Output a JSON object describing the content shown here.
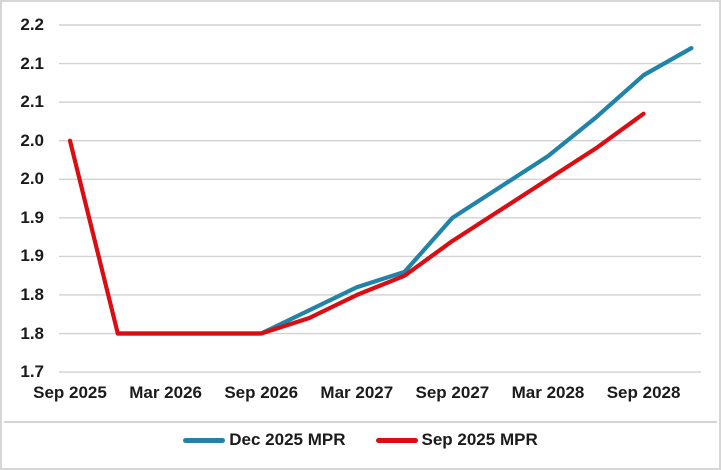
{
  "chart_data": {
    "type": "line",
    "title": "",
    "x": [
      "Sep 2025",
      "Dec 2025",
      "Mar 2026",
      "Jun 2026",
      "Sep 2026",
      "Dec 2026",
      "Mar 2027",
      "Jun 2027",
      "Sep 2027",
      "Dec 2027",
      "Mar 2028",
      "Jun 2028",
      "Sep 2028",
      "Dec 2028"
    ],
    "x_axis_tick_labels": [
      "Sep 2025",
      "Mar 2026",
      "Sep 2026",
      "Mar 2027",
      "Sep 2027",
      "Mar 2028",
      "Sep 2028"
    ],
    "x_axis_tick_indices": [
      0,
      2,
      4,
      6,
      8,
      10,
      12
    ],
    "y_axis": {
      "min": 1.7,
      "max": 2.15,
      "gridline_values": [
        2.15,
        2.1,
        2.05,
        2.0,
        1.95,
        1.9,
        1.85,
        1.8,
        1.75,
        1.7
      ],
      "tick_labels_top_to_bottom": [
        "2.2",
        "2.1",
        "2.1",
        "2.0",
        "2.0",
        "1.9",
        "1.9",
        "1.8",
        "1.8",
        "1.7"
      ],
      "grid": true
    },
    "series": [
      {
        "name": "Dec 2025 MPR",
        "color": "#2183A8",
        "start_index": 1,
        "values": [
          1.75,
          1.75,
          1.75,
          1.75,
          1.78,
          1.81,
          1.83,
          1.9,
          1.94,
          1.98,
          2.03,
          2.085,
          2.12
        ]
      },
      {
        "name": "Sep 2025 MPR",
        "color": "#DC0D12",
        "start_index": 0,
        "values": [
          2.0,
          1.75,
          1.75,
          1.75,
          1.75,
          1.77,
          1.8,
          1.825,
          1.87,
          1.91,
          1.95,
          1.99,
          2.035
        ]
      }
    ],
    "legend_position": "bottom",
    "gridline_color": "#d2d2d2"
  },
  "legend": {
    "items": [
      {
        "label": "Dec 2025 MPR"
      },
      {
        "label": "Sep 2025 MPR"
      }
    ]
  }
}
